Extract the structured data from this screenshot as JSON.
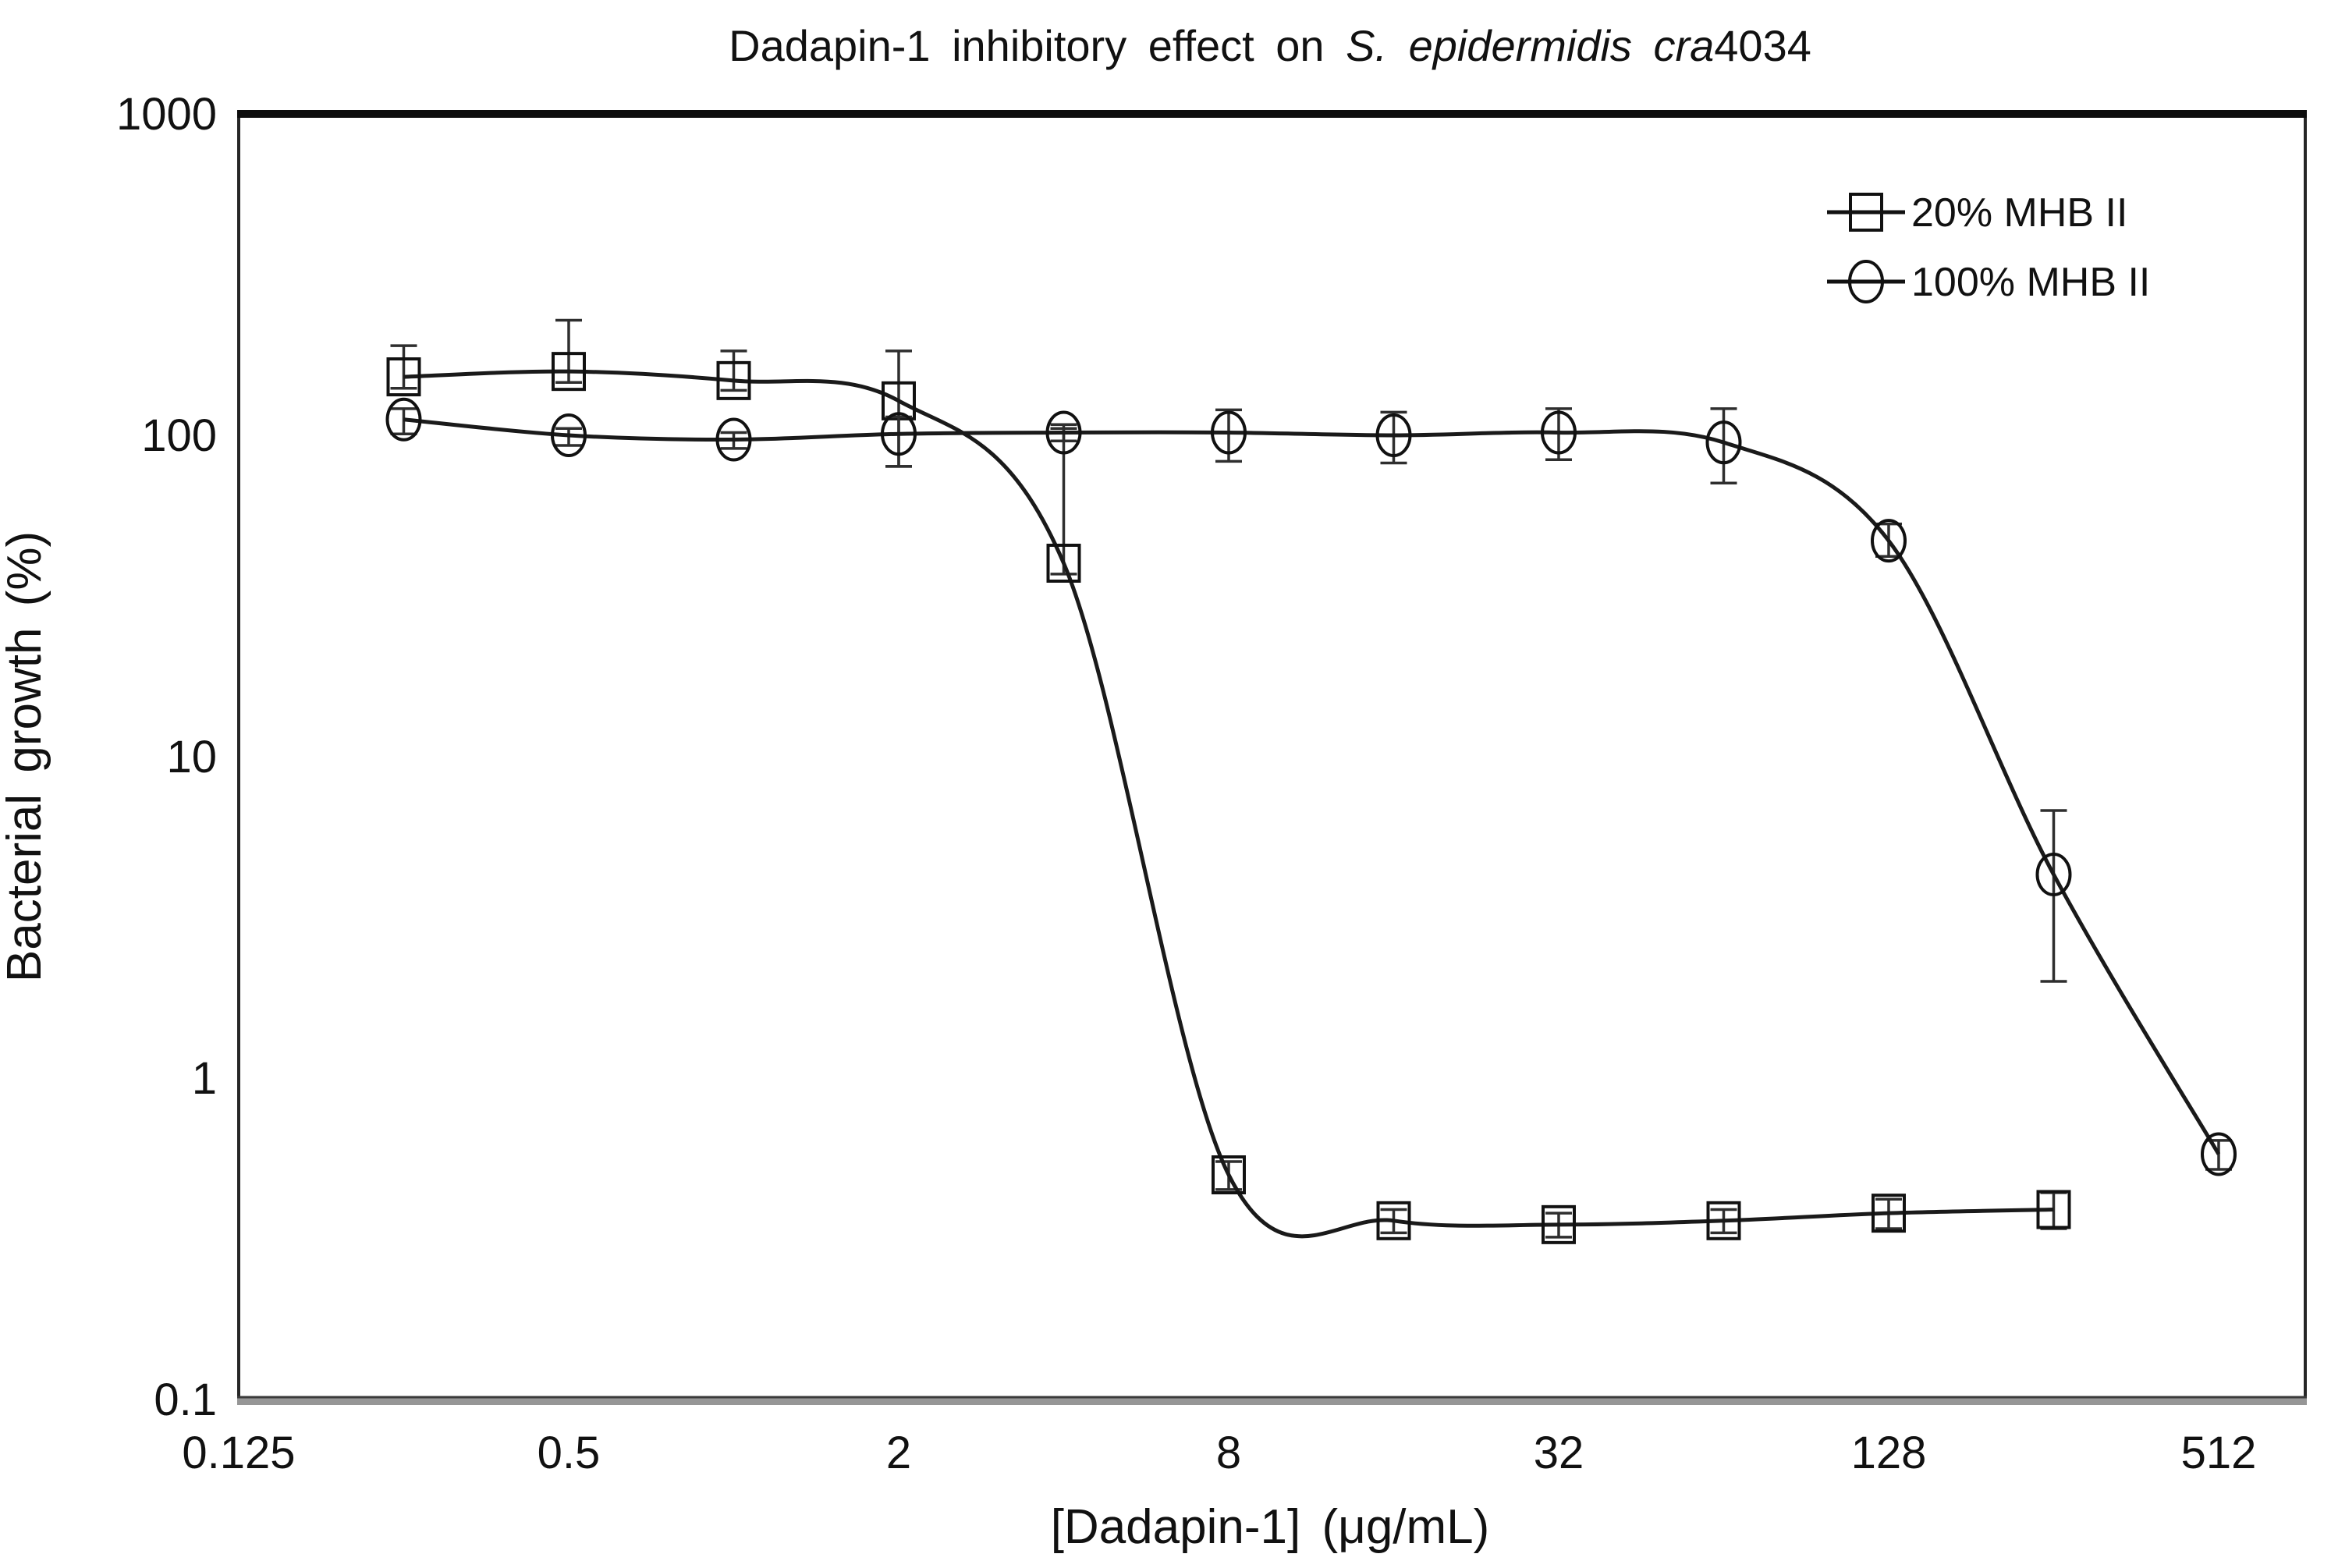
{
  "figure": {
    "background": "#ffffff"
  },
  "chart_data": {
    "type": "line",
    "title": "Dadapin-1 inhibitory effect on S. epidermidis cra4034",
    "title_parts": {
      "prefix": "Dadapin-1 inhibitory effect on ",
      "italic": "S. epidermidis cra",
      "suffix": "4034"
    },
    "xlabel": "[Dadapin-1] (μg/mL)",
    "ylabel": "Bacterial growth (%)",
    "x_scale": "log2",
    "y_scale": "log10",
    "x_tick_labels": [
      "0.125",
      "0.5",
      "2",
      "8",
      "32",
      "128",
      "512"
    ],
    "y_tick_labels": [
      "1000",
      "100",
      "10",
      "1",
      "0.1"
    ],
    "x_range": [
      0.125,
      737
    ],
    "y_range": [
      0.1,
      1000
    ],
    "grid": false,
    "legend_position": "top-right-inside",
    "line_color": "#1a1a1a",
    "marker_color": "#111111",
    "errorbar_color": "#2e2e2e",
    "frame_color": "#262626",
    "series": [
      {
        "name": "20% MHB II",
        "marker": "square",
        "x": [
          0.25,
          0.5,
          1,
          2,
          4,
          8,
          16,
          32,
          64,
          128,
          256
        ],
        "y": [
          152,
          158,
          148,
          128,
          40,
          0.5,
          0.36,
          0.35,
          0.36,
          0.38,
          0.39
        ],
        "err_up": [
          38,
          70,
          35,
          55,
          65,
          0.05,
          0.03,
          0.03,
          0.03,
          0.04,
          0.05
        ],
        "err_down": [
          12,
          12,
          10,
          48,
          3,
          0.05,
          0.03,
          0.03,
          0.03,
          0.04,
          0.05
        ]
      },
      {
        "name": "100% MHB II",
        "marker": "circle",
        "x": [
          0.25,
          0.5,
          1,
          2,
          4,
          8,
          16,
          32,
          64,
          128,
          256,
          512
        ],
        "y": [
          112,
          100,
          97,
          101,
          102,
          102,
          100,
          102,
          95,
          47,
          4.3,
          0.58
        ],
        "err_up": [
          9,
          5,
          5,
          13,
          6,
          18,
          18,
          19,
          26,
          6,
          2.5,
          0.06
        ],
        "err_down": [
          11,
          7,
          6,
          21,
          6,
          19,
          18,
          18,
          24,
          5,
          2.3,
          0.06
        ]
      }
    ]
  }
}
